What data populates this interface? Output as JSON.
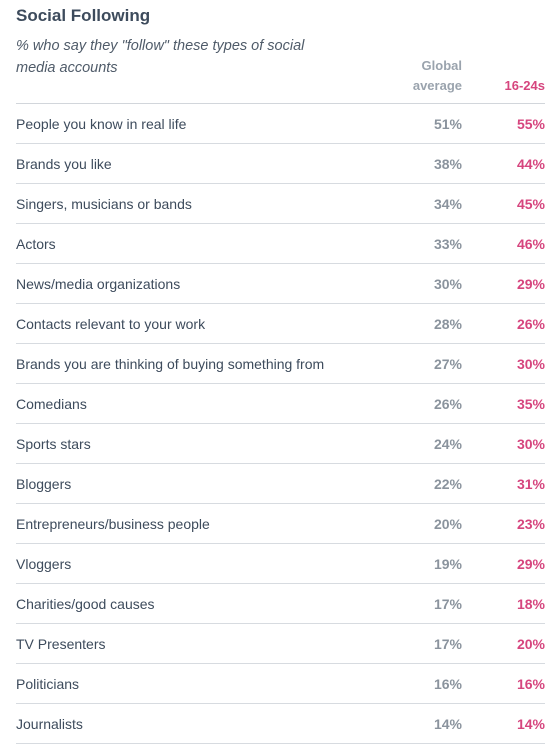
{
  "title": "Social Following",
  "subtitle": "% who say they \"follow\" these types of social media accounts",
  "columns": {
    "global": "Global average",
    "youth": "16-24s"
  },
  "chart_data": {
    "type": "table",
    "categories": [
      "People you know in real life",
      "Brands you like",
      "Singers, musicians or bands",
      "Actors",
      "News/media organizations",
      "Contacts relevant to your work",
      "Brands you are thinking of buying something from",
      "Comedians",
      "Sports stars",
      "Bloggers",
      "Entrepreneurs/business people",
      "Vloggers",
      "Charities/good causes",
      "TV Presenters",
      "Politicians",
      "Journalists"
    ],
    "series": [
      {
        "name": "Global average",
        "values": [
          51,
          38,
          34,
          33,
          30,
          28,
          27,
          26,
          24,
          22,
          20,
          19,
          17,
          17,
          16,
          14
        ]
      },
      {
        "name": "16-24s",
        "values": [
          55,
          44,
          45,
          46,
          29,
          26,
          30,
          35,
          30,
          31,
          23,
          29,
          18,
          20,
          16,
          14
        ]
      }
    ],
    "unit": "%",
    "colors": {
      "global": "#8a939d",
      "youth": "#d6457e"
    }
  }
}
